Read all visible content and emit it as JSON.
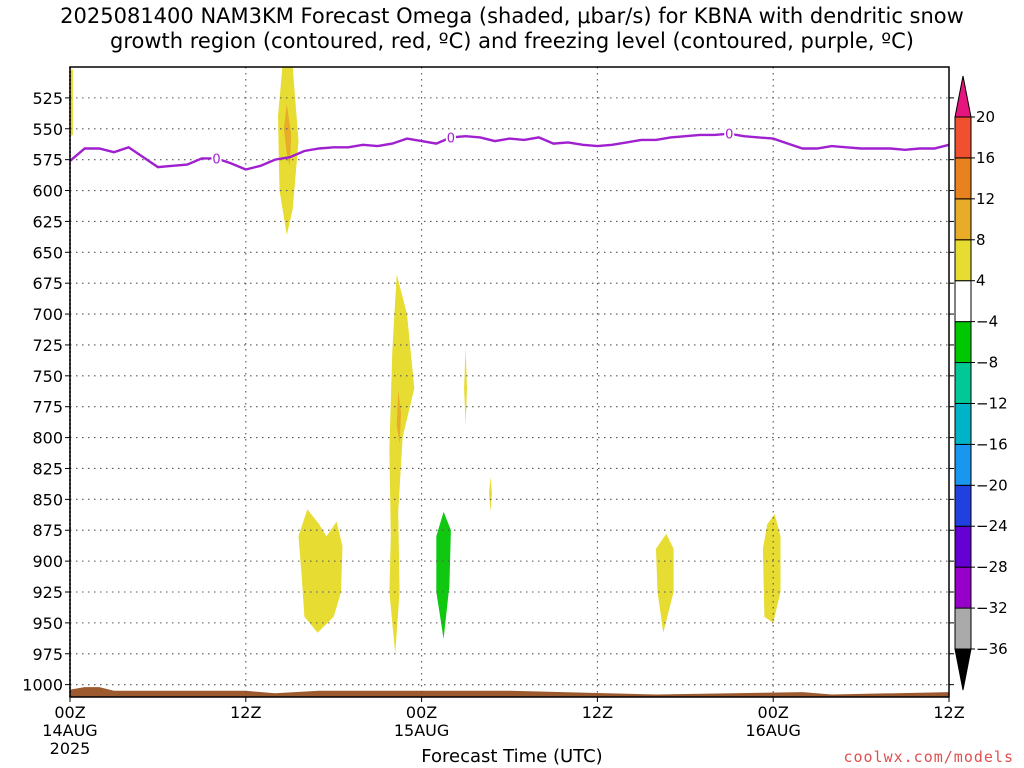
{
  "title": "2025081400 NAM3KM Forecast Omega (shaded, μbar/s) for KBNA with dendritic snow\ngrowth region (contoured, red, ºC) and freezing level (contoured, purple, ºC)",
  "credit": "coolwx.com/models",
  "chart_data": {
    "type": "time-height contour",
    "title": "2025081400 NAM3KM Forecast Omega (shaded, μbar/s) for KBNA with dendritic snow growth region (contoured, red, ºC) and freezing level (contoured, purple, ºC)",
    "xlabel": "Forecast Time (UTC)",
    "ylabel": "",
    "x_range_hours": [
      0,
      60
    ],
    "y_range_hPa": [
      500,
      1010
    ],
    "y_axis": "pressure, inverted",
    "grid": true,
    "x_ticks": [
      {
        "hour": 0,
        "label": "00Z",
        "sub": "14AUG",
        "sub2": "2025"
      },
      {
        "hour": 12,
        "label": "12Z",
        "sub": "",
        "sub2": ""
      },
      {
        "hour": 24,
        "label": "00Z",
        "sub": "15AUG",
        "sub2": ""
      },
      {
        "hour": 36,
        "label": "12Z",
        "sub": "",
        "sub2": ""
      },
      {
        "hour": 48,
        "label": "00Z",
        "sub": "16AUG",
        "sub2": ""
      },
      {
        "hour": 60,
        "label": "12Z",
        "sub": "",
        "sub2": ""
      }
    ],
    "y_ticks": [
      525,
      550,
      575,
      600,
      625,
      650,
      675,
      700,
      725,
      750,
      775,
      800,
      825,
      850,
      875,
      900,
      925,
      950,
      975,
      1000
    ],
    "freezing_level": {
      "label": "0",
      "label_hours": [
        10,
        26,
        45
      ],
      "points": [
        [
          0,
          576
        ],
        [
          1,
          566
        ],
        [
          2,
          566
        ],
        [
          3,
          569
        ],
        [
          4,
          565
        ],
        [
          5,
          573
        ],
        [
          6,
          581
        ],
        [
          7,
          580
        ],
        [
          8,
          579
        ],
        [
          9,
          574
        ],
        [
          10,
          574
        ],
        [
          11,
          578
        ],
        [
          12,
          583
        ],
        [
          13,
          580
        ],
        [
          14,
          575
        ],
        [
          15,
          573
        ],
        [
          16,
          568
        ],
        [
          17,
          566
        ],
        [
          18,
          565
        ],
        [
          19,
          565
        ],
        [
          20,
          563
        ],
        [
          21,
          564
        ],
        [
          22,
          562
        ],
        [
          23,
          558
        ],
        [
          24,
          560
        ],
        [
          25,
          562
        ],
        [
          26,
          557
        ],
        [
          27,
          556
        ],
        [
          28,
          557
        ],
        [
          29,
          560
        ],
        [
          30,
          558
        ],
        [
          31,
          559
        ],
        [
          32,
          557
        ],
        [
          33,
          562
        ],
        [
          34,
          561
        ],
        [
          35,
          563
        ],
        [
          36,
          564
        ],
        [
          37,
          563
        ],
        [
          38,
          561
        ],
        [
          39,
          559
        ],
        [
          40,
          559
        ],
        [
          41,
          557
        ],
        [
          42,
          556
        ],
        [
          43,
          555
        ],
        [
          44,
          555
        ],
        [
          45,
          554
        ],
        [
          46,
          556
        ],
        [
          47,
          557
        ],
        [
          48,
          558
        ],
        [
          49,
          562
        ],
        [
          50,
          566
        ],
        [
          51,
          566
        ],
        [
          52,
          564
        ],
        [
          53,
          565
        ],
        [
          54,
          566
        ],
        [
          55,
          566
        ],
        [
          56,
          566
        ],
        [
          57,
          567
        ],
        [
          58,
          566
        ],
        [
          59,
          566
        ],
        [
          60,
          563
        ]
      ]
    },
    "omega_regions": [
      {
        "level": "4 to 8",
        "color": "#e6dc32",
        "polygon": [
          [
            0,
            502
          ],
          [
            0.2,
            502
          ],
          [
            0.2,
            555
          ],
          [
            0,
            556
          ]
        ]
      },
      {
        "level": "4 to 8",
        "color": "#e6dc32",
        "polygon": [
          [
            14.5,
            500
          ],
          [
            15.2,
            500
          ],
          [
            15.6,
            560
          ],
          [
            15.2,
            615
          ],
          [
            14.8,
            636
          ],
          [
            14.3,
            600
          ],
          [
            14.2,
            540
          ]
        ]
      },
      {
        "level": "8 to 12",
        "color": "#e8ac28",
        "polygon": [
          [
            14.8,
            530
          ],
          [
            15.1,
            555
          ],
          [
            15.0,
            580
          ],
          [
            14.8,
            570
          ],
          [
            14.6,
            550
          ]
        ]
      },
      {
        "level": "4 to 8",
        "color": "#e6dc32",
        "polygon": [
          [
            22.3,
            668
          ],
          [
            23.0,
            700
          ],
          [
            23.5,
            760
          ],
          [
            22.7,
            800
          ],
          [
            22.4,
            860
          ],
          [
            22.5,
            925
          ],
          [
            22.2,
            975
          ],
          [
            21.8,
            925
          ],
          [
            21.9,
            880
          ],
          [
            21.8,
            810
          ],
          [
            22.0,
            730
          ]
        ]
      },
      {
        "level": "8 to 12",
        "color": "#e8ac28",
        "polygon": [
          [
            22.4,
            762
          ],
          [
            22.6,
            780
          ],
          [
            22.5,
            805
          ],
          [
            22.3,
            790
          ]
        ]
      },
      {
        "level": "4 to 8",
        "color": "#e6dc32",
        "polygon": [
          [
            27.0,
            727
          ],
          [
            27.1,
            760
          ],
          [
            27.0,
            790
          ],
          [
            26.9,
            760
          ]
        ]
      },
      {
        "level": "4 to 8",
        "color": "#e6dc32",
        "polygon": [
          [
            28.7,
            832
          ],
          [
            28.8,
            845
          ],
          [
            28.7,
            860
          ],
          [
            28.6,
            845
          ]
        ]
      },
      {
        "level": "4 to 8",
        "color": "#e6dc32",
        "polygon": [
          [
            16.2,
            858
          ],
          [
            17.0,
            870
          ],
          [
            17.5,
            880
          ],
          [
            18.2,
            868
          ],
          [
            18.6,
            888
          ],
          [
            18.5,
            925
          ],
          [
            18.0,
            945
          ],
          [
            16.9,
            958
          ],
          [
            16.0,
            945
          ],
          [
            15.8,
            910
          ],
          [
            15.6,
            880
          ]
        ]
      },
      {
        "level": "-8 to -4",
        "color": "#10c810",
        "polygon": [
          [
            25.5,
            860
          ],
          [
            26.0,
            875
          ],
          [
            25.9,
            920
          ],
          [
            25.5,
            963
          ],
          [
            25.0,
            925
          ],
          [
            25.0,
            880
          ]
        ]
      },
      {
        "level": "4 to 8",
        "color": "#e6dc32",
        "polygon": [
          [
            40.7,
            878
          ],
          [
            41.2,
            890
          ],
          [
            41.2,
            925
          ],
          [
            40.5,
            958
          ],
          [
            40.1,
            925
          ],
          [
            40.0,
            890
          ]
        ]
      },
      {
        "level": "4 to 8",
        "color": "#e6dc32",
        "polygon": [
          [
            48.1,
            862
          ],
          [
            48.5,
            880
          ],
          [
            48.5,
            925
          ],
          [
            48.0,
            950
          ],
          [
            47.4,
            945
          ],
          [
            47.3,
            890
          ],
          [
            47.6,
            870
          ]
        ]
      }
    ],
    "terrain": {
      "color": "#9c5a2e",
      "surface": [
        [
          0,
          1004
        ],
        [
          1,
          1002
        ],
        [
          2,
          1002
        ],
        [
          3,
          1005
        ],
        [
          12,
          1005
        ],
        [
          14,
          1007
        ],
        [
          17,
          1005
        ],
        [
          30,
          1005
        ],
        [
          40,
          1008
        ],
        [
          50,
          1006
        ],
        [
          52,
          1008
        ],
        [
          60,
          1006
        ]
      ]
    },
    "colorbar": {
      "colors": [
        "#000000",
        "#aaaaaa",
        "#9600c8",
        "#6400d2",
        "#2040e0",
        "#1896f0",
        "#00b4c8",
        "#00c896",
        "#00c800",
        "#ffffff",
        "#e6dc32",
        "#e8ac28",
        "#e8821e",
        "#f05030",
        "#e6147d"
      ],
      "labels": [
        "-36",
        "-32",
        "-28",
        "-24",
        "-20",
        "-16",
        "-12",
        "-8",
        "-4",
        "4",
        "8",
        "12",
        "16",
        "20"
      ]
    }
  }
}
